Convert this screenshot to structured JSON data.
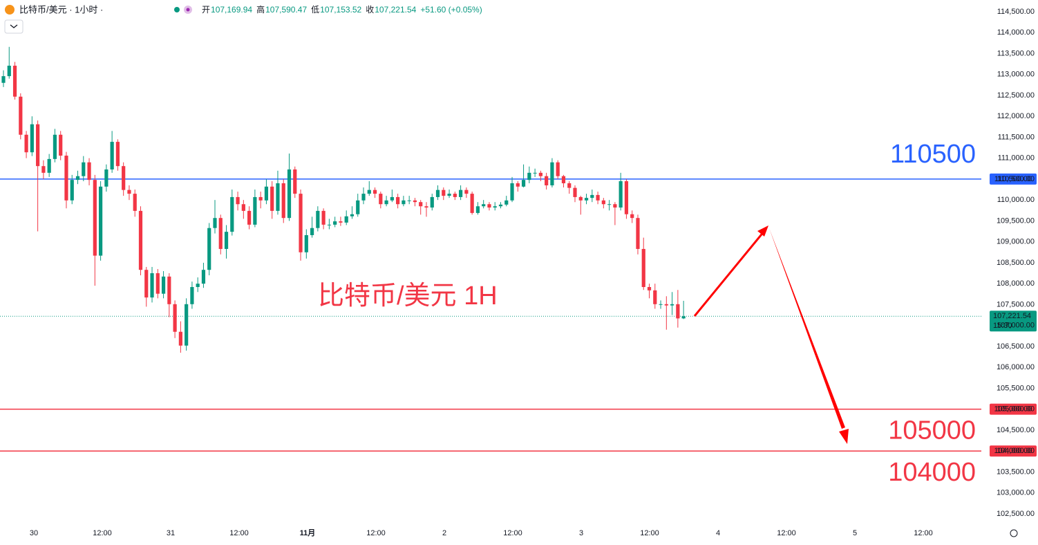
{
  "chart_data": {
    "type": "candlestick",
    "title": "比特币/美元 · 1小时 ·",
    "legend": {
      "items": [
        {
          "label": "开",
          "value": "107,169.94"
        },
        {
          "label": "高",
          "value": "107,590.47"
        },
        {
          "label": "低",
          "value": "107,153.52"
        },
        {
          "label": "收",
          "value": "107,221.54"
        }
      ],
      "change": "+51.60 (+0.05%)"
    },
    "annotation": "比特币/美元 1H",
    "up_color": "#089981",
    "down_color": "#f23645",
    "open": [
      112800,
      112960,
      113210,
      112470,
      111560,
      111140,
      111810,
      110810,
      110650,
      110980,
      111560,
      111060,
      109990,
      110480,
      110570,
      110900,
      110480,
      108670,
      110320,
      110730,
      111390,
      110810,
      110240,
      110150,
      109740,
      108330,
      107670,
      108250,
      107760,
      108170,
      107510,
      106850,
      106520,
      107510,
      107920,
      108000,
      108330,
      109330,
      109570,
      108830,
      109240,
      110070,
      109900,
      109740,
      109410,
      110070,
      109990,
      110320,
      109740,
      110400,
      109570,
      110730,
      110150,
      108750,
      109160,
      109330,
      109740,
      109410,
      109410,
      109490,
      109460,
      109610,
      109660,
      109990,
      110150,
      110240,
      110150,
      109900,
      109990,
      110070,
      109900,
      109990,
      109990,
      109950,
      109850,
      109820,
      110070,
      110240,
      110100,
      110150,
      110070,
      110240,
      110150,
      109690,
      109850,
      109900,
      109820,
      109850,
      109890,
      109990,
      110400,
      110320,
      110480,
      110650,
      110650,
      110570,
      110350,
      110900,
      110570,
      110400,
      110290,
      110070,
      109990,
      110050,
      110120,
      109990,
      109900,
      109900,
      109820,
      110450,
      109660,
      109570,
      108830,
      107920,
      107840,
      107510,
      107510,
      107480,
      107510,
      107169.94
    ],
    "high": [
      113100,
      113660,
      113300,
      112550,
      111650,
      112000,
      111900,
      110950,
      111100,
      111700,
      111650,
      111150,
      110600,
      110700,
      111050,
      111000,
      110600,
      110450,
      110850,
      111650,
      111450,
      110900,
      110350,
      110250,
      109850,
      108400,
      108400,
      108350,
      108300,
      108250,
      107600,
      107100,
      107650,
      108050,
      108150,
      108500,
      109450,
      110000,
      109650,
      109400,
      110250,
      110200,
      110000,
      109850,
      110250,
      110200,
      110500,
      110450,
      110700,
      110500,
      111110,
      110800,
      110250,
      109300,
      109600,
      109850,
      109800,
      109550,
      109600,
      109600,
      109750,
      109850,
      110150,
      110300,
      110450,
      110300,
      110200,
      110100,
      110250,
      110150,
      110100,
      110100,
      110050,
      110000,
      109950,
      110150,
      110350,
      110300,
      110250,
      110200,
      110350,
      110300,
      110200,
      109950,
      110000,
      109950,
      109950,
      109950,
      110100,
      110550,
      110450,
      110850,
      110800,
      110750,
      110700,
      110650,
      111000,
      110950,
      110600,
      110450,
      110350,
      110100,
      110150,
      110250,
      110200,
      110050,
      110000,
      109950,
      110650,
      110500,
      109750,
      109650,
      109100,
      108000,
      108000,
      107600,
      107700,
      107800,
      107850,
      107590.47
    ],
    "low": [
      112700,
      112900,
      112400,
      111450,
      111000,
      111050,
      109250,
      110500,
      110550,
      110900,
      110950,
      109800,
      109900,
      110380,
      110450,
      110350,
      107950,
      108550,
      110200,
      110650,
      110700,
      110100,
      110000,
      109600,
      108200,
      107450,
      107550,
      107650,
      107650,
      107200,
      106700,
      106350,
      106400,
      107400,
      107800,
      107900,
      108200,
      109200,
      108700,
      108600,
      109150,
      109750,
      109550,
      109300,
      109350,
      109800,
      109900,
      109550,
      109650,
      109450,
      109500,
      110050,
      108550,
      108600,
      109100,
      109250,
      109300,
      109300,
      109350,
      109380,
      109400,
      109550,
      109600,
      109900,
      110100,
      110050,
      109800,
      109850,
      109950,
      109800,
      109850,
      109900,
      109850,
      109650,
      109600,
      109750,
      110000,
      110000,
      110050,
      110000,
      110000,
      110050,
      109650,
      109650,
      109800,
      109750,
      109750,
      109800,
      109850,
      109950,
      110200,
      110300,
      110400,
      110550,
      110450,
      110250,
      110300,
      110500,
      110300,
      110150,
      109950,
      109650,
      109900,
      109950,
      109900,
      109800,
      109750,
      109400,
      109750,
      109550,
      109450,
      108700,
      107850,
      107650,
      107400,
      107400,
      106900,
      107250,
      106950,
      107153.52
    ],
    "close": [
      112960,
      113210,
      112470,
      111560,
      111140,
      111810,
      110810,
      110650,
      110980,
      111560,
      111060,
      109990,
      110480,
      110570,
      110900,
      110480,
      108670,
      110320,
      110730,
      111390,
      110810,
      110240,
      110150,
      109740,
      108330,
      107670,
      108250,
      107760,
      108170,
      107510,
      106850,
      106520,
      107510,
      107920,
      108000,
      108330,
      109330,
      109570,
      108830,
      109240,
      110070,
      109900,
      109740,
      109410,
      110070,
      109990,
      110320,
      109740,
      110400,
      109570,
      110730,
      110150,
      108750,
      109160,
      109330,
      109740,
      109410,
      109410,
      109490,
      109460,
      109610,
      109660,
      109990,
      110150,
      110240,
      110150,
      109900,
      109990,
      110070,
      109900,
      109990,
      109990,
      109950,
      109850,
      109820,
      110070,
      110240,
      110100,
      110150,
      110070,
      110240,
      110150,
      109690,
      109850,
      109900,
      109820,
      109850,
      109890,
      109990,
      110400,
      110320,
      110480,
      110650,
      110650,
      110570,
      110350,
      110900,
      110570,
      110400,
      110290,
      110070,
      109990,
      110050,
      110120,
      109990,
      109900,
      109900,
      109820,
      110450,
      109660,
      109570,
      108830,
      107920,
      107840,
      107510,
      107510,
      107480,
      107510,
      107169.94,
      107221.54
    ],
    "xticks": [
      "30",
      "12:00",
      "31",
      "12:00",
      "11月",
      "12:00",
      "2",
      "12:00",
      "3",
      "12:00",
      "4",
      "12:00",
      "5",
      "12:00"
    ],
    "ylim": [
      102250,
      114780
    ],
    "yticks": [
      {
        "value": 102500,
        "label": "102,500.00"
      },
      {
        "value": 103000,
        "label": "103,000.00"
      },
      {
        "value": 103500,
        "label": "103,500.00"
      },
      {
        "value": 104000,
        "label": "104,000.00"
      },
      {
        "value": 104500,
        "label": "104,500.00"
      },
      {
        "value": 105000,
        "label": "105,000.00"
      },
      {
        "value": 105500,
        "label": "105,500.00"
      },
      {
        "value": 106000,
        "label": "106,000.00"
      },
      {
        "value": 106500,
        "label": "106,500.00"
      },
      {
        "value": 107000,
        "label": "107,000.00"
      },
      {
        "value": 107500,
        "label": "107,500.00"
      },
      {
        "value": 108000,
        "label": "108,000.00"
      },
      {
        "value": 108500,
        "label": "108,500.00"
      },
      {
        "value": 109000,
        "label": "109,000.00"
      },
      {
        "value": 109500,
        "label": "109,500.00"
      },
      {
        "value": 110000,
        "label": "110,000.00"
      },
      {
        "value": 110500,
        "label": "110,500.00"
      },
      {
        "value": 111000,
        "label": "111,000.00"
      },
      {
        "value": 111500,
        "label": "111,500.00"
      },
      {
        "value": 112000,
        "label": "112,000.00"
      },
      {
        "value": 112500,
        "label": "112,500.00"
      },
      {
        "value": 113000,
        "label": "113,000.00"
      },
      {
        "value": 113500,
        "label": "113,500.00"
      },
      {
        "value": 114000,
        "label": "114,000.00"
      },
      {
        "value": 114500,
        "label": "114,500.00"
      }
    ],
    "levels": [
      {
        "value": 110500,
        "label": "110500",
        "badge": "110,500.00",
        "color": "#2962ff"
      },
      {
        "value": 105000,
        "label": "105000",
        "badge": "105,000.00",
        "color": "#f23645"
      },
      {
        "value": 104000,
        "label": "104000",
        "badge": "104,000.00",
        "color": "#f23645"
      }
    ],
    "last": {
      "value": 107221.54,
      "label": "107,221.54",
      "countdown": "15:30",
      "color": "#089981"
    },
    "grid": false
  }
}
